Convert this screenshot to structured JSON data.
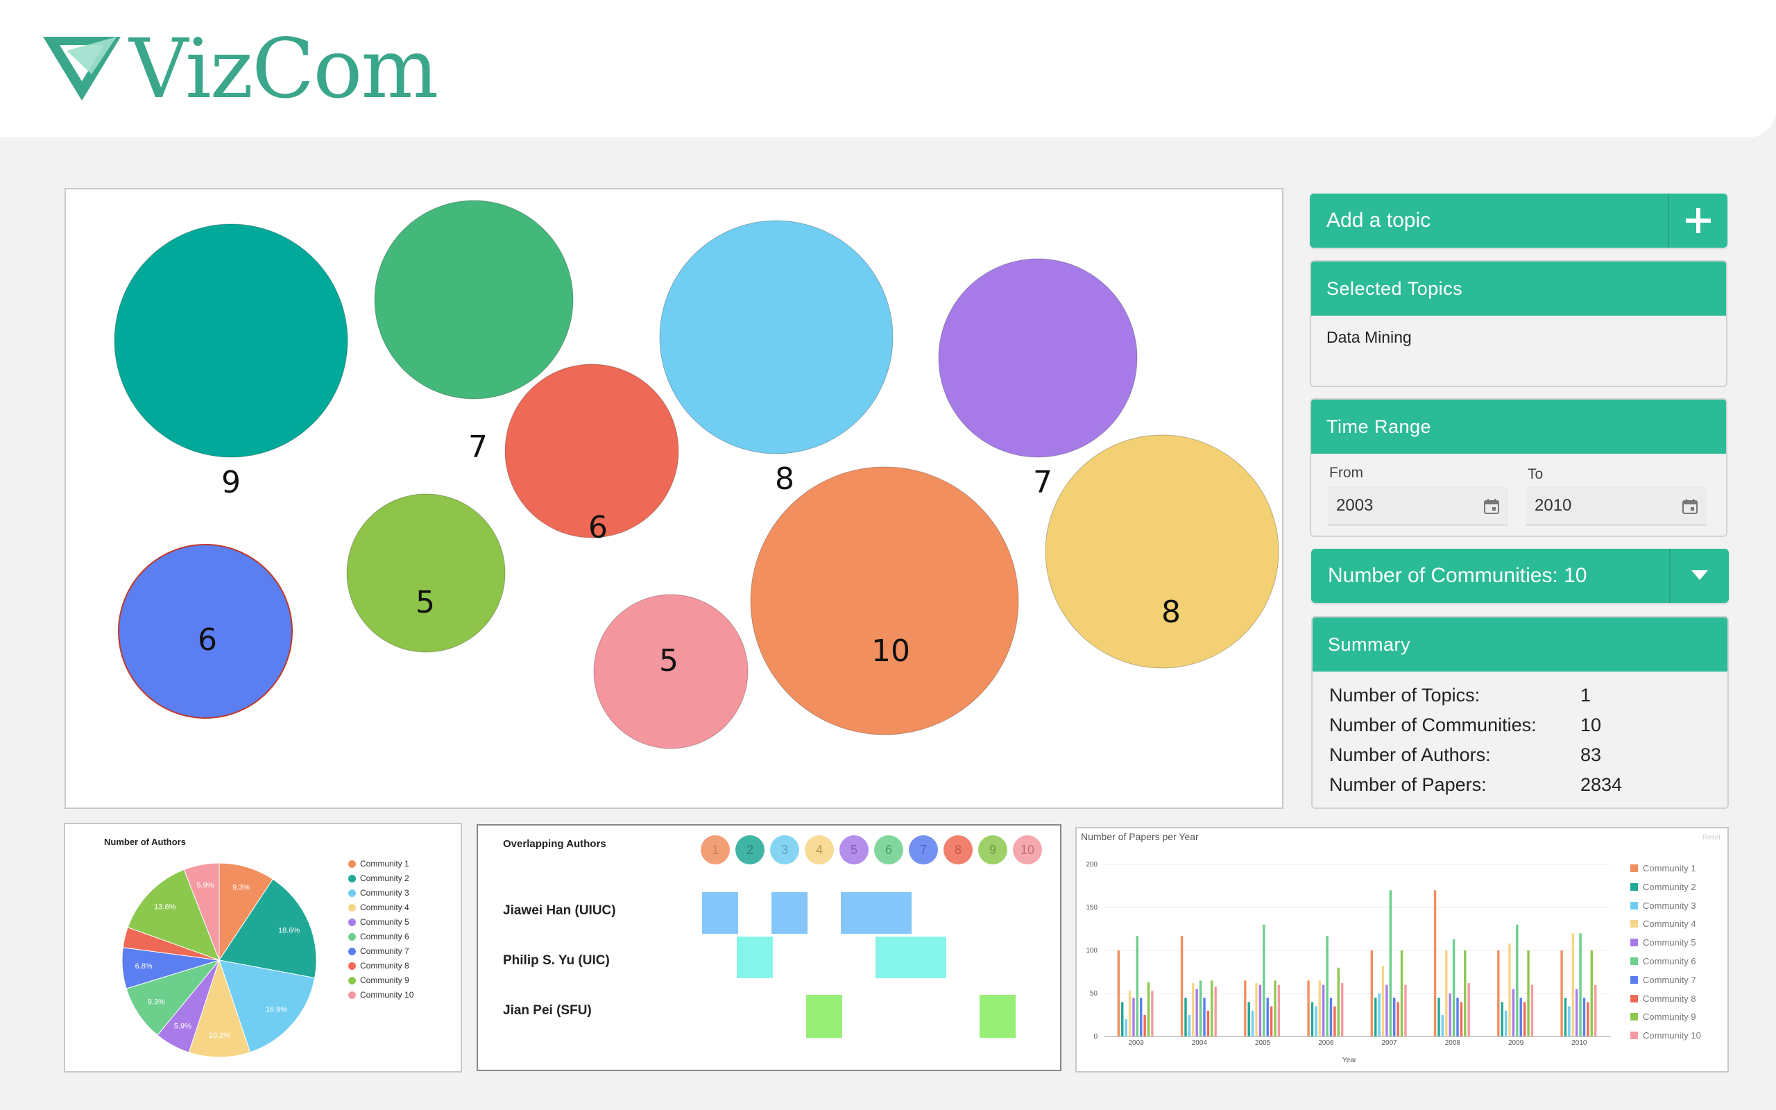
{
  "app": {
    "title": "VizCom"
  },
  "communities": [
    {
      "id": "1",
      "color": "#f28f5f",
      "label_color": "#c96a3d"
    },
    {
      "id": "2",
      "color": "#1fa896",
      "label_color": "#0b6a5e"
    },
    {
      "id": "3",
      "color": "#72cdf2",
      "label_color": "#3a8fb5"
    },
    {
      "id": "4",
      "color": "#f6d586",
      "label_color": "#b48d2c"
    },
    {
      "id": "5",
      "color": "#a87be8",
      "label_color": "#6f3fb8"
    },
    {
      "id": "6",
      "color": "#6ccf8c",
      "label_color": "#2f8a50"
    },
    {
      "id": "7",
      "color": "#5b7ef0",
      "label_color": "#2b48b0"
    },
    {
      "id": "8",
      "color": "#ef6a56",
      "label_color": "#b5392a"
    },
    {
      "id": "9",
      "color": "#8cc84e",
      "label_color": "#577f28"
    },
    {
      "id": "10",
      "color": "#f59aa2",
      "label_color": "#c0545e"
    }
  ],
  "bubbles": [
    {
      "community": "1",
      "value": 10,
      "color": "#f28f5f"
    },
    {
      "community": "2",
      "value": 9,
      "color": "#00a99a"
    },
    {
      "community": "3",
      "value": 8,
      "color": "#72cdf2"
    },
    {
      "community": "4",
      "value": 8,
      "color": "#f2d073"
    },
    {
      "community": "5",
      "value": 7,
      "color": "#a67be8"
    },
    {
      "community": "6",
      "value": 7,
      "color": "#43b87a"
    },
    {
      "community": "7",
      "value": 6,
      "color": "#5b7ef0"
    },
    {
      "community": "8",
      "value": 6,
      "color": "#ef6a56"
    },
    {
      "community": "9",
      "value": 5,
      "color": "#8dc449"
    },
    {
      "community": "10",
      "value": 5,
      "color": "#f4969e"
    }
  ],
  "sidebar": {
    "add_topic_label": "Add a topic",
    "selected_topics": {
      "title": "Selected Topics",
      "items": [
        "Data Mining"
      ]
    },
    "time_range": {
      "title": "Time Range",
      "from_label": "From",
      "to_label": "To",
      "from_value": "2003",
      "to_value": "2010"
    },
    "communities_select": {
      "label": "Number of Communities: 10"
    },
    "summary": {
      "title": "Summary",
      "rows": [
        {
          "label": "Number of Topics:",
          "value": "1"
        },
        {
          "label": "Number of Communities:",
          "value": "10"
        },
        {
          "label": "Number of Authors:",
          "value": "83"
        },
        {
          "label": "Number of Papers:",
          "value": "2834"
        }
      ]
    }
  },
  "authors_pie": {
    "title": "Number of Authors",
    "legend": [
      "Community 1",
      "Community 2",
      "Community 3",
      "Community 4",
      "Community 5",
      "Community 6",
      "Community 7",
      "Community 8",
      "Community 9",
      "Community 10"
    ]
  },
  "overlap": {
    "title": "Overlapping Authors",
    "authors": [
      {
        "name": "Jiawei Han (UIUC)",
        "communities": [
          "1",
          "3",
          "5",
          "6"
        ]
      },
      {
        "name": "Philip S. Yu (UIC)",
        "communities": [
          "2",
          "6",
          "7"
        ]
      },
      {
        "name": "Jian Pei (SFU)",
        "communities": [
          "4",
          "9"
        ]
      }
    ],
    "cell_colors": {
      "row1": "#85c6fa",
      "row2": "#85f5ea",
      "row3": "#98ef78"
    }
  },
  "papers_bar": {
    "title": "Number of Papers per Year",
    "reset_label": "Reset",
    "xlabel": "Year"
  },
  "chart_data": [
    {
      "type": "pie",
      "title": "Number of Authors",
      "categories": [
        "Community 1",
        "Community 2",
        "Community 3",
        "Community 4",
        "Community 5",
        "Community 6",
        "Community 7",
        "Community 8",
        "Community 9",
        "Community 10"
      ],
      "values": [
        9.3,
        18.6,
        16.9,
        10.2,
        5.9,
        9.3,
        6.8,
        3.4,
        13.6,
        5.9
      ],
      "labels": [
        "9.3%",
        "18.6%",
        "16.9%",
        "10.2%",
        "5.9%",
        "9.3%",
        "6.8%",
        "",
        "13.6%",
        "5.9%"
      ]
    },
    {
      "type": "bar",
      "title": "Number of Papers per Year",
      "xlabel": "Year",
      "ylabel": "",
      "ylim": [
        0,
        200
      ],
      "yticks": [
        0,
        50,
        100,
        150,
        200
      ],
      "categories": [
        "2003",
        "2004",
        "2005",
        "2006",
        "2007",
        "2008",
        "2009",
        "2010"
      ],
      "series": [
        {
          "name": "Community 1",
          "values": [
            100,
            117,
            65,
            65,
            100,
            170,
            100,
            100
          ]
        },
        {
          "name": "Community 2",
          "values": [
            40,
            45,
            40,
            40,
            45,
            45,
            40,
            45
          ]
        },
        {
          "name": "Community 3",
          "values": [
            20,
            25,
            30,
            35,
            50,
            25,
            30,
            35
          ]
        },
        {
          "name": "Community 4",
          "values": [
            53,
            62,
            62,
            65,
            82,
            100,
            108,
            120
          ]
        },
        {
          "name": "Community 5",
          "values": [
            45,
            55,
            60,
            60,
            60,
            50,
            55,
            55
          ]
        },
        {
          "name": "Community 6",
          "values": [
            117,
            65,
            130,
            117,
            170,
            113,
            130,
            120
          ]
        },
        {
          "name": "Community 7",
          "values": [
            45,
            45,
            45,
            45,
            45,
            45,
            45,
            45
          ]
        },
        {
          "name": "Community 8",
          "values": [
            25,
            30,
            35,
            35,
            40,
            40,
            40,
            40
          ]
        },
        {
          "name": "Community 9",
          "values": [
            63,
            65,
            65,
            80,
            100,
            100,
            100,
            100
          ]
        },
        {
          "name": "Community 10",
          "values": [
            53,
            58,
            60,
            62,
            60,
            62,
            60,
            60
          ]
        }
      ]
    }
  ]
}
